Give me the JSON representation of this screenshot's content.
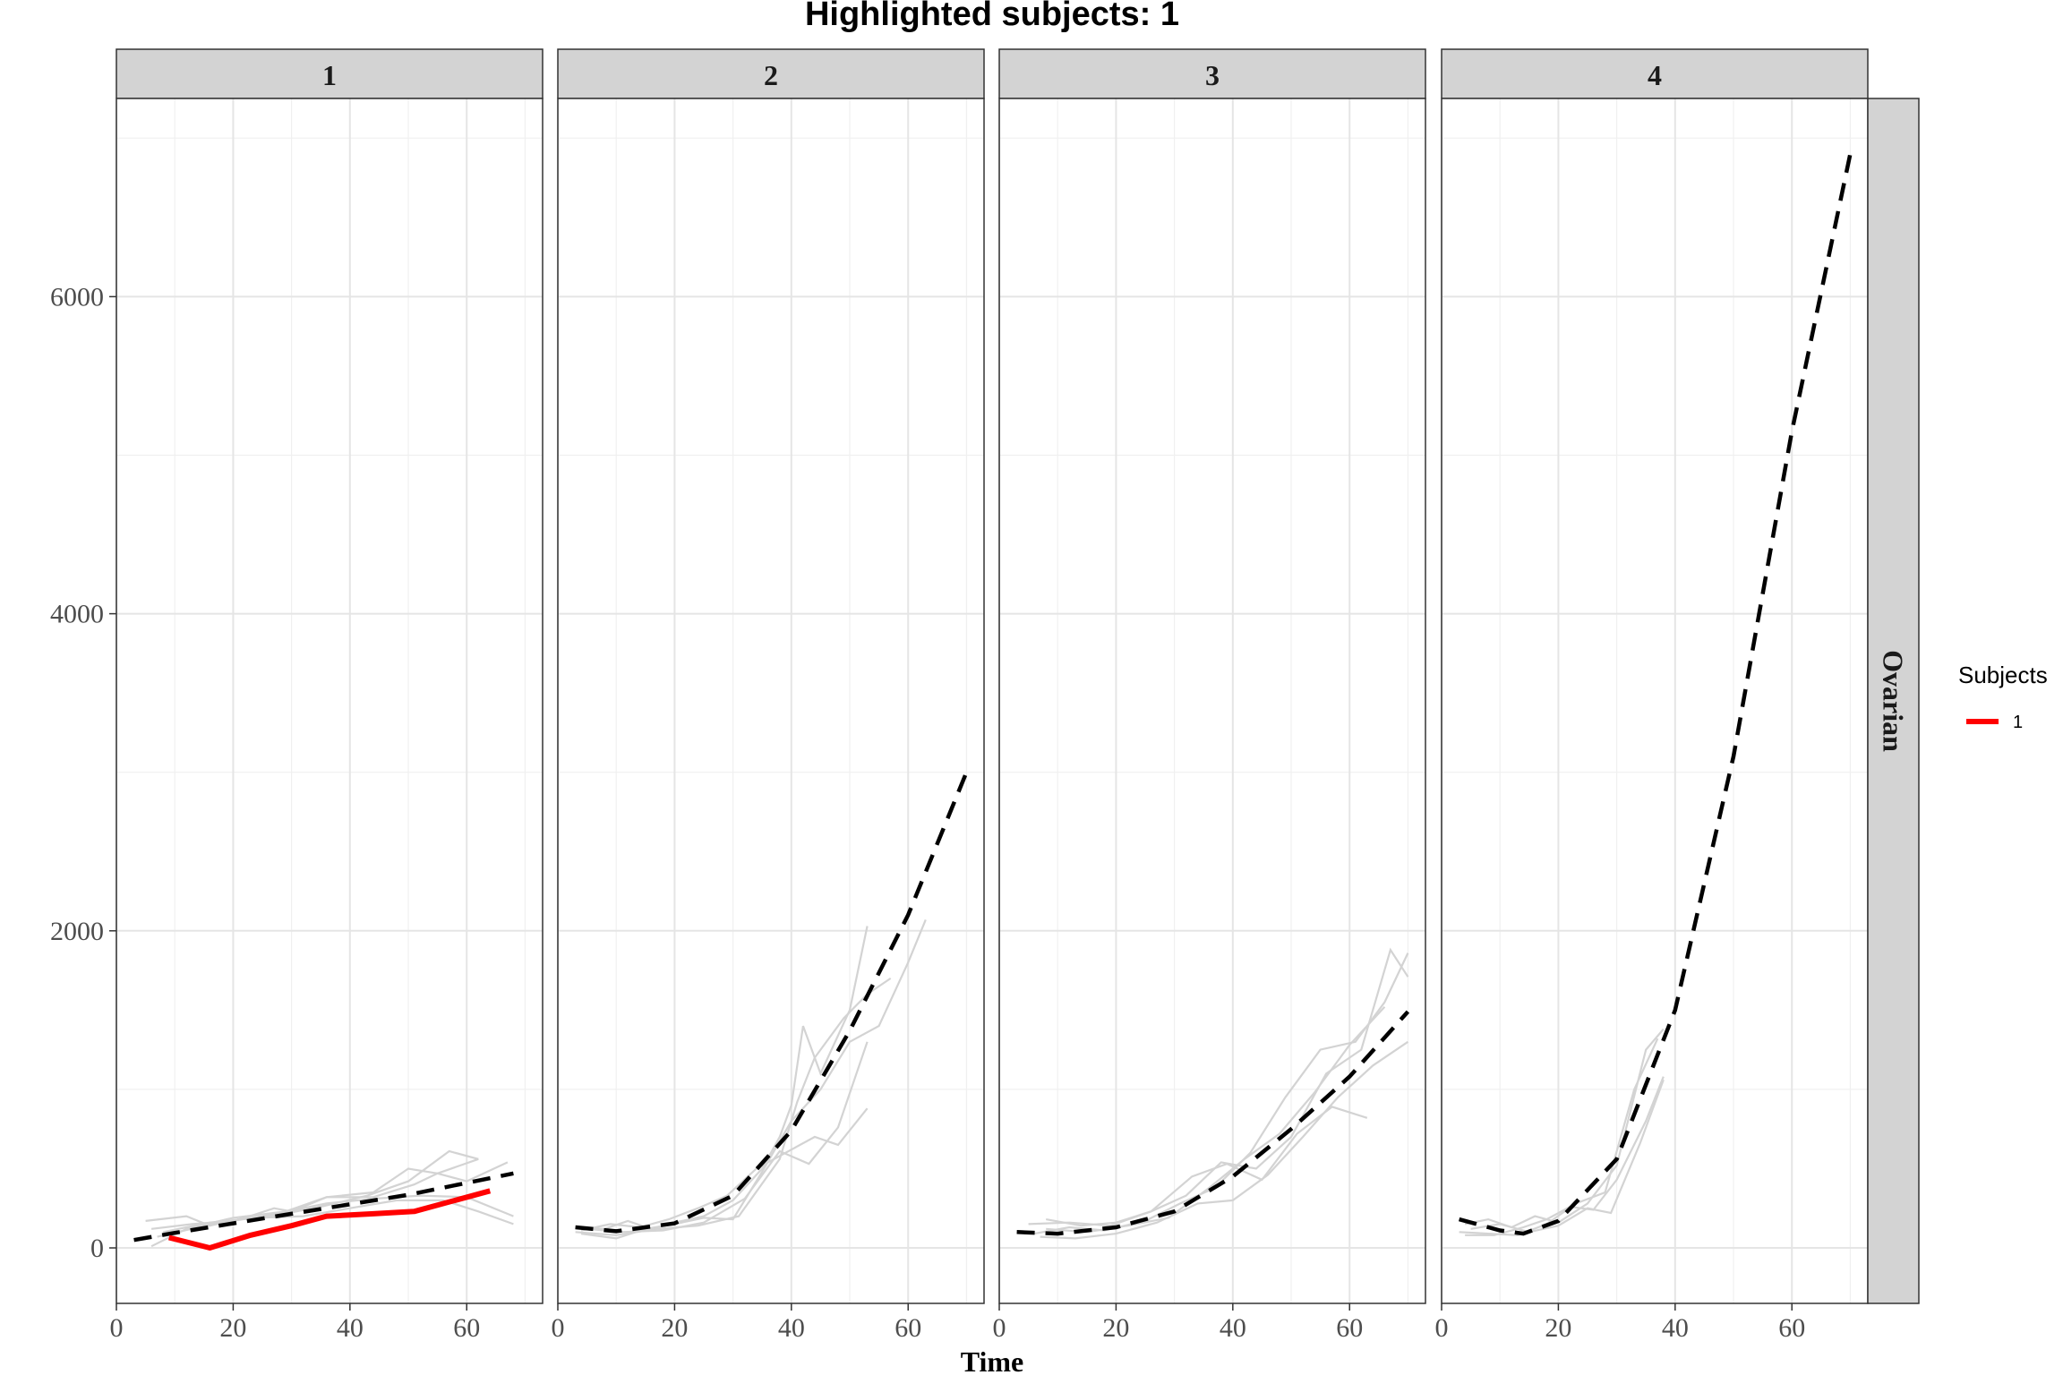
{
  "chart_data": {
    "type": "line",
    "title": "Highlighted subjects: 1",
    "xlabel": "Time",
    "ylabel": "",
    "xlim": [
      0,
      73
    ],
    "ylim": [
      -350,
      7250
    ],
    "x_ticks": [
      0,
      20,
      40,
      60
    ],
    "y_ticks": [
      0,
      2000,
      4000,
      6000
    ],
    "row_strip": "Ovarian",
    "grid": true,
    "legend": {
      "title": "Subjects",
      "position": "right",
      "entries": [
        {
          "label": "1",
          "color": "#ff0000"
        }
      ]
    },
    "colors": {
      "highlight": "#ff0000",
      "background_subjects": "#d3d3d3",
      "fit": "#000000"
    },
    "panels": [
      {
        "label": "1",
        "highlight": {
          "name": "1",
          "x": [
            9,
            16,
            23,
            30,
            36,
            44,
            51,
            64
          ],
          "y": [
            65,
            0,
            80,
            140,
            200,
            215,
            230,
            360
          ]
        },
        "fit": {
          "x": [
            3,
            10,
            20,
            30,
            40,
            50,
            60,
            68
          ],
          "y": [
            50,
            95,
            155,
            215,
            275,
            335,
            410,
            470
          ]
        },
        "subjects": [
          {
            "x": [
              5,
              12,
              16,
              22,
              27,
              30,
              36,
              44,
              51,
              55,
              62
            ],
            "y": [
              170,
              200,
              140,
              190,
              250,
              230,
              320,
              320,
              400,
              470,
              560
            ]
          },
          {
            "x": [
              6,
              12,
              20,
              29,
              36,
              44,
              50,
              55,
              60,
              67
            ],
            "y": [
              10,
              120,
              190,
              230,
              320,
              350,
              500,
              470,
              420,
              540
            ]
          },
          {
            "x": [
              7,
              14,
              21,
              28,
              35,
              43,
              50,
              57,
              62
            ],
            "y": [
              70,
              130,
              180,
              210,
              260,
              330,
              420,
              610,
              560
            ]
          },
          {
            "x": [
              8,
              16,
              24,
              32,
              40,
              48,
              56,
              62,
              68
            ],
            "y": [
              100,
              160,
              190,
              200,
              250,
              300,
              300,
              230,
              150
            ]
          },
          {
            "x": [
              6,
              13,
              20,
              28,
              36,
              44,
              52,
              60,
              68
            ],
            "y": [
              120,
              150,
              170,
              220,
              280,
              310,
              330,
              320,
              200
            ]
          }
        ]
      },
      {
        "label": "2",
        "highlight": null,
        "fit": {
          "x": [
            3,
            10,
            20,
            30,
            40,
            50,
            60,
            70
          ],
          "y": [
            130,
            105,
            155,
            330,
            740,
            1370,
            2100,
            3000
          ]
        },
        "subjects": [
          {
            "x": [
              3,
              8,
              12,
              16,
              20,
              25,
              30,
              35,
              38,
              40,
              42,
              45,
              50,
              53
            ],
            "y": [
              130,
              120,
              170,
              120,
              160,
              200,
              300,
              500,
              700,
              900,
              1400,
              1100,
              1500,
              2030
            ]
          },
          {
            "x": [
              4,
              10,
              15,
              20,
              25,
              30,
              35,
              40,
              45,
              50,
              55,
              60,
              63
            ],
            "y": [
              90,
              60,
              120,
              150,
              190,
              180,
              480,
              800,
              1000,
              1300,
              1400,
              1800,
              2070
            ]
          },
          {
            "x": [
              4,
              9,
              14,
              19,
              24,
              29,
              34,
              39,
              44,
              48,
              53
            ],
            "y": [
              110,
              150,
              130,
              180,
              250,
              330,
              500,
              600,
              700,
              650,
              880
            ]
          },
          {
            "x": [
              3,
              10,
              17,
              24,
              31,
              38,
              41,
              44,
              49,
              53,
              57
            ],
            "y": [
              100,
              80,
              120,
              140,
              200,
              560,
              920,
              1200,
              1450,
              1600,
              1700
            ]
          },
          {
            "x": [
              5,
              11,
              18,
              25,
              32,
              38,
              43,
              48,
              53
            ],
            "y": [
              120,
              100,
              110,
              160,
              310,
              610,
              530,
              760,
              1300
            ]
          }
        ]
      },
      {
        "label": "3",
        "highlight": null,
        "fit": {
          "x": [
            3,
            10,
            20,
            30,
            40,
            50,
            60,
            70
          ],
          "y": [
            100,
            90,
            130,
            230,
            450,
            750,
            1080,
            1490
          ]
        },
        "subjects": [
          {
            "x": [
              8,
              14,
              20,
              26,
              32,
              38,
              44,
              50,
              56,
              62,
              67,
              70
            ],
            "y": [
              180,
              140,
              160,
              230,
              330,
              540,
              500,
              700,
              1100,
              1250,
              1880,
              1710
            ]
          },
          {
            "x": [
              6,
              12,
              18,
              25,
              31,
              37,
              43,
              49,
              55,
              61,
              66,
              70
            ],
            "y": [
              90,
              130,
              110,
              170,
              280,
              380,
              600,
              950,
              1250,
              1300,
              1550,
              1860
            ]
          },
          {
            "x": [
              7,
              13,
              20,
              27,
              34,
              40,
              46,
              52,
              58,
              64,
              70
            ],
            "y": [
              70,
              60,
              90,
              160,
              280,
              300,
              460,
              700,
              950,
              1150,
              1300
            ]
          },
          {
            "x": [
              5,
              12,
              19,
              26,
              33,
              39,
              45,
              51,
              57,
              63
            ],
            "y": [
              150,
              160,
              140,
              230,
              450,
              530,
              430,
              720,
              890,
              820
            ]
          },
          {
            "x": [
              8,
              15,
              22,
              29,
              36,
              42,
              48,
              54,
              60,
              66
            ],
            "y": [
              120,
              100,
              140,
              190,
              380,
              560,
              720,
              980,
              1280,
              1520
            ]
          }
        ]
      },
      {
        "label": "4",
        "highlight": null,
        "fit": {
          "x": [
            3,
            10,
            14,
            20,
            30,
            40,
            50,
            60,
            70
          ],
          "y": [
            180,
            110,
            90,
            170,
            560,
            1500,
            3100,
            5150,
            6900
          ]
        },
        "subjects": [
          {
            "x": [
              4,
              8,
              12,
              16,
              20,
              25,
              30,
              35,
              38
            ],
            "y": [
              150,
              180,
              130,
              200,
              160,
              280,
              520,
              1250,
              1380
            ]
          },
          {
            "x": [
              4,
              9,
              14,
              18,
              22,
              26,
              30,
              35,
              38
            ],
            "y": [
              80,
              80,
              130,
              180,
              260,
              240,
              430,
              800,
              1080
            ]
          },
          {
            "x": [
              5,
              10,
              15,
              20,
              25,
              29,
              34,
              38
            ],
            "y": [
              120,
              150,
              100,
              140,
              250,
              220,
              660,
              1060
            ]
          },
          {
            "x": [
              3,
              8,
              13,
              18,
              23,
              28,
              33,
              37
            ],
            "y": [
              100,
              90,
              80,
              150,
              280,
              350,
              1000,
              1320
            ]
          }
        ]
      }
    ]
  }
}
